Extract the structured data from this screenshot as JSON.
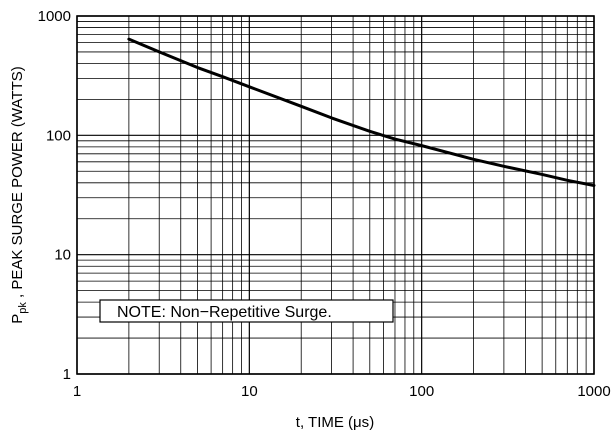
{
  "chart_data": {
    "type": "line",
    "x_scale": "log",
    "y_scale": "log",
    "xlim": [
      1,
      1000
    ],
    "ylim": [
      1,
      1000
    ],
    "grid": true,
    "xlabel": "t, TIME (μs)",
    "xlabel_parts": {
      "prefix": "t, TIME (",
      "unit": "μs",
      "suffix": ")"
    },
    "ylabel": "Ppk , PEAK SURGE POWER (WATTS)",
    "ylabel_parts": {
      "base": "P",
      "subscript": "pk",
      "rest": " , PEAK SURGE POWER (WATTS)"
    },
    "x_ticks": [
      "1",
      "10",
      "100",
      "1000"
    ],
    "y_ticks": [
      "1",
      "10",
      "100",
      "1000"
    ],
    "annotation": "NOTE: Non−Repetitive Surge.",
    "series": [
      {
        "x": [
          2,
          3,
          5,
          7,
          10,
          20,
          30,
          50,
          70,
          100,
          200,
          300,
          500,
          700,
          1000
        ],
        "y": [
          640,
          500,
          370,
          310,
          255,
          175,
          140,
          108,
          93,
          82,
          63,
          55,
          47,
          42,
          38
        ]
      }
    ]
  }
}
